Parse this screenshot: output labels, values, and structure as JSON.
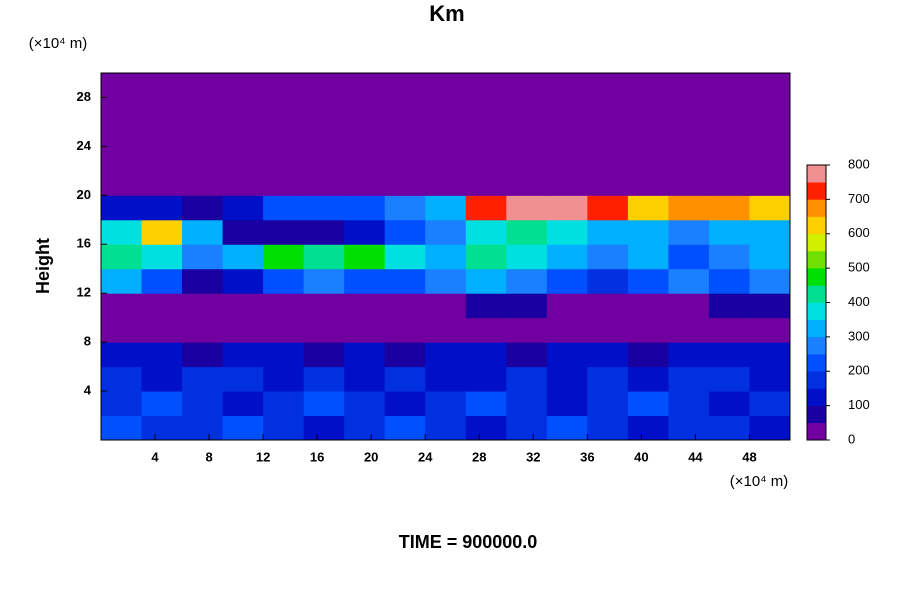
{
  "chart_data": {
    "type": "heatmap",
    "title": "Km",
    "ylabel": "Height",
    "y_unit": "(×10⁴ m)",
    "x_unit": "(×10⁴ m)",
    "footer": "TIME = 900000.0",
    "xlim": [
      0,
      51
    ],
    "ylim": [
      0,
      30
    ],
    "xticks": [
      4,
      8,
      12,
      16,
      20,
      24,
      28,
      32,
      36,
      40,
      44,
      48
    ],
    "yticks": [
      4,
      8,
      12,
      16,
      20,
      24,
      28
    ],
    "xbins": [
      0,
      3,
      6,
      9,
      12,
      15,
      18,
      21,
      24,
      27,
      30,
      33,
      36,
      39,
      42,
      45,
      48,
      51
    ],
    "ybins": [
      0,
      2,
      4,
      6,
      8,
      10,
      12,
      14,
      16,
      18,
      20,
      22,
      24,
      26,
      28,
      30
    ],
    "z": [
      [
        200,
        150,
        150,
        200,
        150,
        100,
        150,
        200,
        150,
        100,
        150,
        200,
        150,
        100,
        150,
        150,
        100
      ],
      [
        150,
        200,
        150,
        100,
        150,
        200,
        150,
        100,
        150,
        200,
        150,
        100,
        150,
        200,
        150,
        100,
        150
      ],
      [
        150,
        100,
        150,
        150,
        100,
        150,
        100,
        150,
        100,
        100,
        150,
        100,
        150,
        100,
        150,
        150,
        100
      ],
      [
        100,
        100,
        50,
        100,
        100,
        50,
        100,
        50,
        100,
        100,
        50,
        100,
        100,
        50,
        100,
        100,
        100
      ],
      [
        0,
        0,
        0,
        0,
        0,
        0,
        0,
        0,
        0,
        0,
        0,
        0,
        0,
        0,
        0,
        0,
        0
      ],
      [
        0,
        0,
        0,
        0,
        0,
        0,
        0,
        0,
        0,
        50,
        50,
        0,
        0,
        0,
        0,
        50,
        50
      ],
      [
        300,
        200,
        50,
        100,
        200,
        250,
        200,
        200,
        250,
        300,
        250,
        200,
        150,
        200,
        250,
        200,
        250
      ],
      [
        400,
        350,
        250,
        300,
        450,
        400,
        450,
        350,
        300,
        400,
        350,
        300,
        250,
        300,
        200,
        250,
        300
      ],
      [
        350,
        600,
        300,
        50,
        50,
        50,
        100,
        200,
        250,
        350,
        400,
        350,
        300,
        300,
        250,
        300,
        300
      ],
      [
        100,
        100,
        50,
        100,
        200,
        200,
        200,
        250,
        300,
        700,
        750,
        750,
        700,
        600,
        650,
        650,
        600
      ],
      [
        0,
        0,
        0,
        0,
        0,
        0,
        0,
        0,
        0,
        0,
        0,
        0,
        0,
        0,
        0,
        0,
        0
      ],
      [
        0,
        0,
        0,
        0,
        0,
        0,
        0,
        0,
        0,
        0,
        0,
        0,
        0,
        0,
        0,
        0,
        0
      ],
      [
        0,
        0,
        0,
        0,
        0,
        0,
        0,
        0,
        0,
        0,
        0,
        0,
        0,
        0,
        0,
        0,
        0
      ],
      [
        0,
        0,
        0,
        0,
        0,
        0,
        0,
        0,
        0,
        0,
        0,
        0,
        0,
        0,
        0,
        0,
        0
      ],
      [
        0,
        0,
        0,
        0,
        0,
        0,
        0,
        0,
        0,
        0,
        0,
        0,
        0,
        0,
        0,
        0,
        0
      ]
    ],
    "colorbar_lim": [
      0,
      800
    ],
    "colorbar_ticks": [
      0,
      100,
      200,
      300,
      400,
      500,
      600,
      700,
      800
    ],
    "colors": [
      "#7000a0",
      "#1a00a0",
      "#0010c8",
      "#0030e0",
      "#0050ff",
      "#1a80ff",
      "#00b0ff",
      "#00e0e0",
      "#00e090",
      "#00e000",
      "#70e000",
      "#d0f000",
      "#ffd000",
      "#ff9000",
      "#ff2000",
      "#f09090"
    ]
  }
}
